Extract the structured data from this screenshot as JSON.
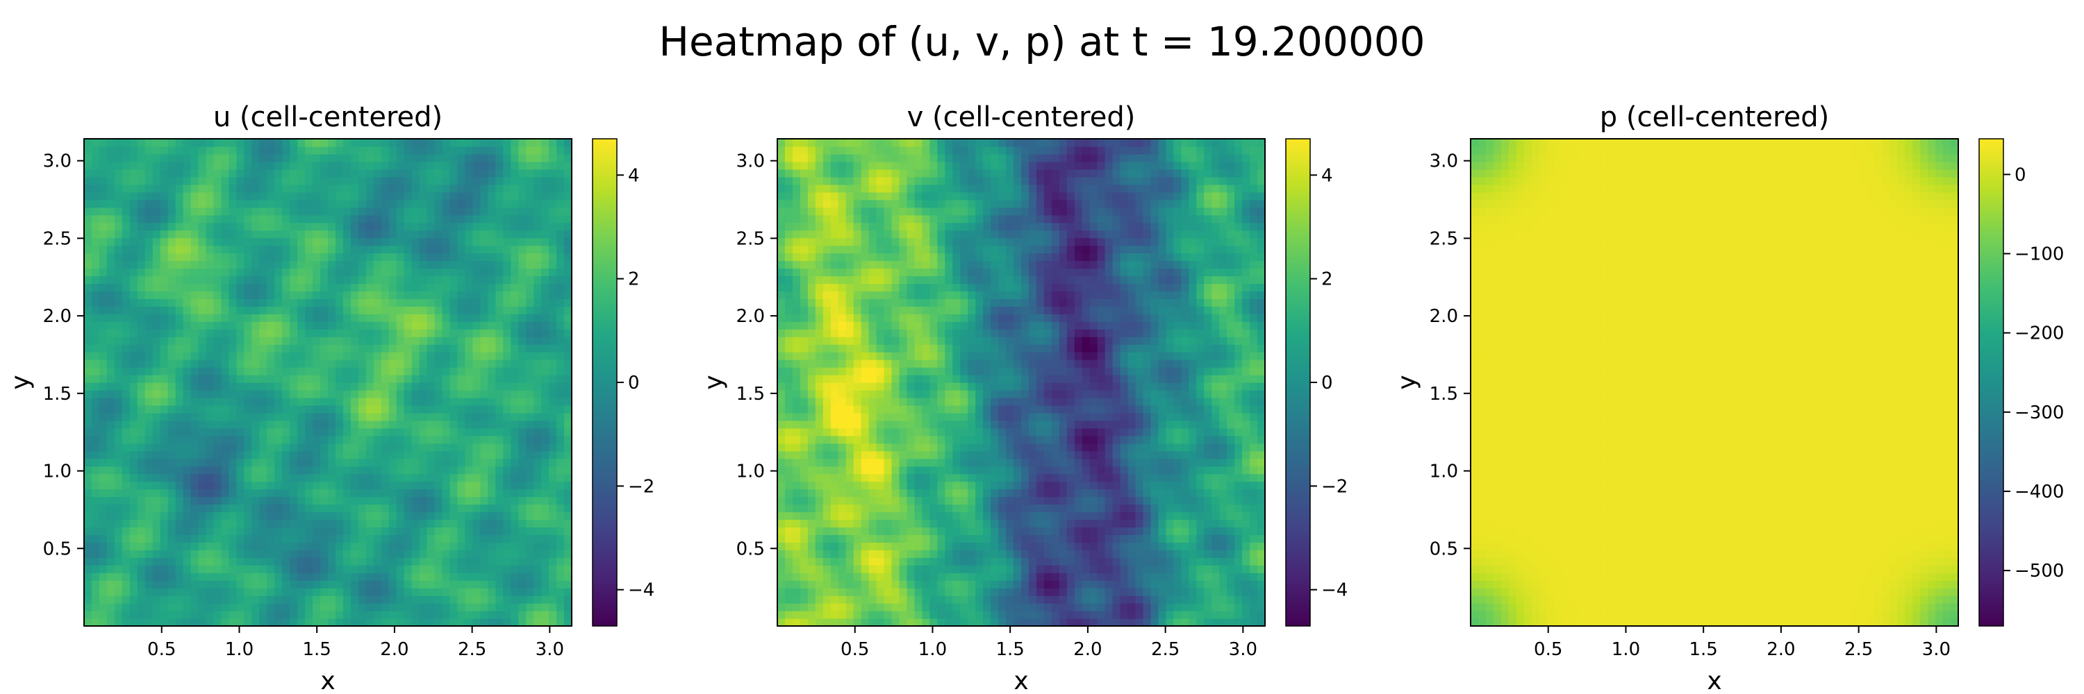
{
  "figure": {
    "title": "Heatmap of (u, v, p) at t = 19.200000"
  },
  "chart_data": [
    {
      "type": "heatmap",
      "title": "u (cell-centered)",
      "xlabel": "x",
      "ylabel": "y",
      "xlim": [
        0,
        3.1416
      ],
      "ylim": [
        0,
        3.1416
      ],
      "x_ticks": [
        "0.5",
        "1.0",
        "1.5",
        "2.0",
        "2.5",
        "3.0"
      ],
      "y_ticks": [
        "0.5",
        "1.0",
        "1.5",
        "2.0",
        "2.5",
        "3.0"
      ],
      "colorbar": {
        "vmin": -4.7,
        "vmax": 4.7,
        "ticks": [
          -4,
          -2,
          0,
          2,
          4
        ],
        "tick_labels": [
          "−4",
          "−2",
          "0",
          "2",
          "4"
        ]
      },
      "colormap": "viridis",
      "value_range_shown": [
        -4.7,
        4.7
      ]
    },
    {
      "type": "heatmap",
      "title": "v (cell-centered)",
      "xlabel": "x",
      "ylabel": "y",
      "xlim": [
        0,
        3.1416
      ],
      "ylim": [
        0,
        3.1416
      ],
      "x_ticks": [
        "0.5",
        "1.0",
        "1.5",
        "2.0",
        "2.5",
        "3.0"
      ],
      "y_ticks": [
        "0.5",
        "1.0",
        "1.5",
        "2.0",
        "2.5",
        "3.0"
      ],
      "colorbar": {
        "vmin": -4.7,
        "vmax": 4.7,
        "ticks": [
          -4,
          -2,
          0,
          2,
          4
        ],
        "tick_labels": [
          "−4",
          "−2",
          "0",
          "2",
          "4"
        ]
      },
      "colormap": "viridis",
      "value_range_shown": [
        -4.7,
        4.7
      ]
    },
    {
      "type": "heatmap",
      "title": "p (cell-centered)",
      "xlabel": "x",
      "ylabel": "y",
      "xlim": [
        0,
        3.1416
      ],
      "ylim": [
        0,
        3.1416
      ],
      "x_ticks": [
        "0.5",
        "1.0",
        "1.5",
        "2.0",
        "2.5",
        "3.0"
      ],
      "y_ticks": [
        "0.5",
        "1.0",
        "1.5",
        "2.0",
        "2.5",
        "3.0"
      ],
      "colorbar": {
        "vmin": -570,
        "vmax": 45,
        "ticks": [
          -500,
          -400,
          -300,
          -200,
          -100,
          0
        ],
        "tick_labels": [
          "−500",
          "−400",
          "−300",
          "−200",
          "−100",
          "0"
        ]
      },
      "colormap": "viridis",
      "value_range_shown": [
        -120,
        35
      ]
    }
  ]
}
